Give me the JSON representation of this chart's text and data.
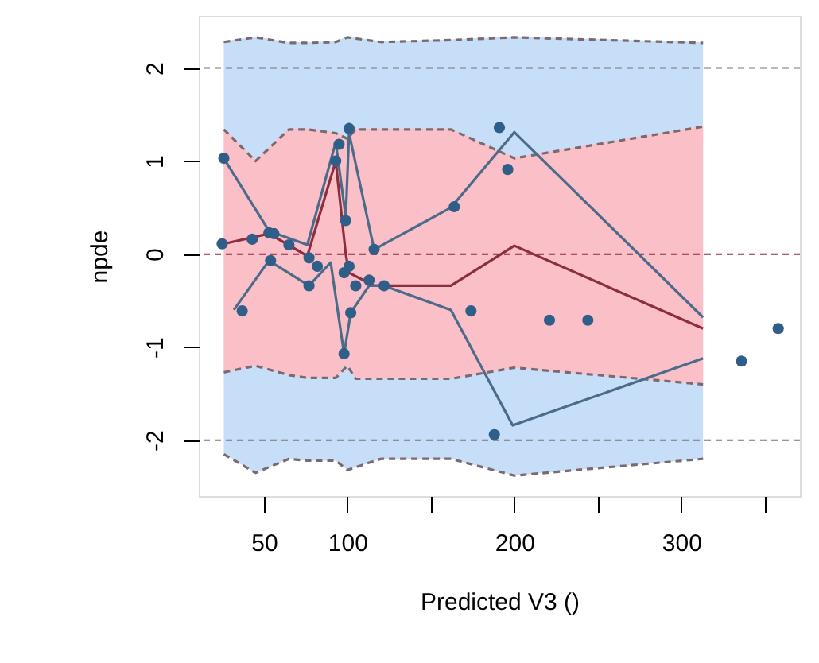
{
  "chart_data": {
    "type": "line",
    "xlabel": "Predicted V3 ()",
    "ylabel": "npde",
    "xlim": [
      11,
      371
    ],
    "ylim": [
      -2.6,
      2.56
    ],
    "xticks": [
      50,
      100,
      {
        "value": 150,
        "label": null
      },
      200,
      {
        "value": 250,
        "label": null
      },
      300,
      {
        "value": 350,
        "label": null
      }
    ],
    "yticks": [
      -2,
      -1,
      0,
      1,
      2
    ],
    "grid": false,
    "series": [
      {
        "color": "#c6def8",
        "x": [
          26,
          45,
          65,
          76,
          93,
          100,
          120,
          162,
          200,
          313
        ],
        "lower": [
          -2.15,
          -2.35,
          -2.2,
          -2.22,
          -2.22,
          -2.32,
          -2.2,
          -2.2,
          -2.38,
          -2.2
        ],
        "upper": [
          2.28,
          2.33,
          2.27,
          2.27,
          2.28,
          2.33,
          2.28,
          2.3,
          2.33,
          2.27
        ],
        "values": [
          2.28,
          2.33,
          2.27,
          2.27,
          2.28,
          2.33,
          2.28,
          2.3,
          2.33,
          2.27
        ]
      },
      {
        "color": "#fbbfc8",
        "x": [
          26,
          45,
          65,
          76,
          93,
          100,
          105,
          120,
          162,
          200,
          313
        ],
        "lower": [
          -1.27,
          -1.2,
          -1.3,
          -1.33,
          -1.33,
          -1.2,
          -1.34,
          -1.34,
          -1.34,
          -1.22,
          -1.4
        ],
        "upper": [
          1.34,
          1.0,
          1.34,
          1.34,
          1.3,
          1.24,
          1.34,
          1.34,
          1.34,
          1.03,
          1.37
        ],
        "values": [
          1.34,
          1.0,
          1.34,
          1.34,
          1.3,
          1.24,
          1.34,
          1.34,
          1.34,
          1.03,
          1.37
        ]
      },
      {
        "color": "#7a6a70",
        "line_style": "dashed",
        "x": [
          26,
          45,
          65,
          76,
          93,
          100,
          120,
          162,
          200,
          313
        ],
        "values": [
          2.28,
          2.33,
          2.27,
          2.27,
          2.28,
          2.33,
          2.28,
          2.3,
          2.33,
          2.27
        ]
      },
      {
        "color": "#7a6a70",
        "line_style": "dashed",
        "x": [
          26,
          45,
          65,
          76,
          93,
          100,
          120,
          162,
          200,
          313
        ],
        "values": [
          -2.15,
          -2.35,
          -2.2,
          -2.22,
          -2.22,
          -2.32,
          -2.2,
          -2.2,
          -2.38,
          -2.2
        ]
      },
      {
        "color": "#7a6a70",
        "line_style": "dashed",
        "x": [
          26,
          45,
          65,
          76,
          93,
          100,
          105,
          120,
          162,
          200,
          313
        ],
        "values": [
          1.34,
          1.0,
          1.34,
          1.34,
          1.3,
          1.24,
          1.34,
          1.34,
          1.34,
          1.03,
          1.37
        ]
      },
      {
        "color": "#7a6a70",
        "line_style": "dashed",
        "x": [
          26,
          45,
          65,
          76,
          93,
          100,
          105,
          120,
          162,
          200,
          313
        ],
        "values": [
          -1.27,
          -1.2,
          -1.3,
          -1.33,
          -1.33,
          -1.2,
          -1.34,
          -1.34,
          -1.34,
          -1.22,
          -1.4
        ]
      },
      {
        "color": "#4b6b8a",
        "x": [
          26,
          53,
          76,
          93,
          99,
          101,
          116,
          162,
          200,
          313
        ],
        "values": [
          1.03,
          0.25,
          0.1,
          1.2,
          0.4,
          1.3,
          0.05,
          0.5,
          1.31,
          -0.68
        ]
      },
      {
        "color": "#8b2f3f",
        "x": [
          26,
          53,
          76,
          93,
          99,
          101,
          116,
          162,
          200,
          313
        ],
        "values": [
          0.11,
          0.22,
          -0.02,
          1.0,
          0.0,
          -0.2,
          -0.34,
          -0.34,
          0.09,
          -0.8
        ]
      },
      {
        "color": "#4b6b8a",
        "x": [
          32,
          53,
          77,
          90,
          98,
          102,
          113,
          122,
          162,
          199,
          313
        ],
        "values": [
          -0.6,
          -0.07,
          -0.34,
          -0.09,
          -1.07,
          -0.63,
          -0.34,
          -0.34,
          -0.6,
          -1.84,
          -1.12
        ]
      },
      {
        "type": "scatter",
        "color": "#2f5f88",
        "marker": "circle",
        "x": [
          26,
          25,
          37,
          43,
          53,
          56,
          54,
          65,
          77,
          77,
          82,
          93,
          95,
          101,
          99,
          98,
          101,
          98,
          102,
          105,
          113,
          116,
          122,
          164,
          174,
          188,
          191,
          196,
          221,
          244,
          336,
          358
        ],
        "values": [
          1.03,
          0.11,
          -0.61,
          0.16,
          0.23,
          0.22,
          -0.07,
          0.1,
          -0.04,
          -0.34,
          -0.13,
          1.0,
          1.18,
          1.35,
          0.36,
          -1.07,
          -0.13,
          -0.2,
          -0.63,
          -0.34,
          -0.28,
          0.05,
          -0.34,
          0.51,
          -0.61,
          -1.94,
          1.36,
          0.91,
          -0.71,
          -0.71,
          -1.15,
          -0.8
        ]
      }
    ],
    "ref_lines": [
      {
        "axis": "y",
        "value": 2,
        "color": "#777777",
        "line_style": "dashed"
      },
      {
        "axis": "y",
        "value": 0,
        "color": "#8b2f3f",
        "line_style": "dashed"
      },
      {
        "axis": "y",
        "value": -2,
        "color": "#777777",
        "line_style": "dashed"
      }
    ]
  }
}
